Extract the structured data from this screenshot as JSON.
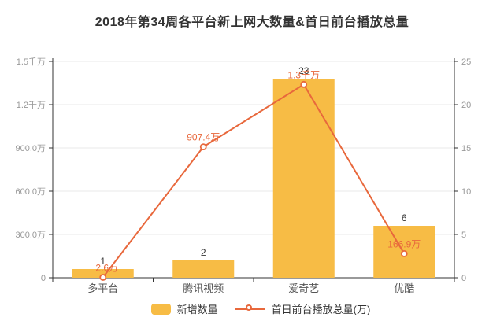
{
  "title": {
    "text": "2018年第34周各平台新上网大数量&首日前台播放总量"
  },
  "chart_data": {
    "type": "bar",
    "title": "2018年第34周各平台新上网大数量&首日前台播放总量",
    "categories": [
      "多平台",
      "腾讯视频",
      "爱奇艺",
      "优酷"
    ],
    "series": [
      {
        "name": "新增数量",
        "type": "bar",
        "axis": "right",
        "values": [
          1,
          2,
          23,
          6
        ],
        "labels": [
          "1",
          "2",
          "23",
          "6"
        ],
        "color": "#F7BC45"
      },
      {
        "name": "首日前台播放总量(万)",
        "type": "line",
        "axis": "left",
        "values": [
          2.6,
          907.4,
          1340,
          166.9
        ],
        "labels": [
          "2.6万",
          "907.4万",
          "1.3千万",
          "166.9万"
        ],
        "color": "#E8683C"
      }
    ],
    "left_axis": {
      "unit": "万",
      "min": 0,
      "max": 1500,
      "ticks": [
        "0",
        "300.0万",
        "600.0万",
        "900.0万",
        "1.2千万",
        "1.5千万"
      ]
    },
    "right_axis": {
      "min": 0,
      "max": 25,
      "ticks": [
        "0",
        "5",
        "10",
        "15",
        "20",
        "25"
      ]
    },
    "grid": true,
    "legend_position": "bottom",
    "colors": {
      "bar": "#F7BC45",
      "line": "#E8683C",
      "axis_line": "#333333",
      "axis_tick_label": "#999999",
      "category_label": "#555555",
      "gridline": "#E9E9E9",
      "bar_value_label": "#333333"
    }
  }
}
